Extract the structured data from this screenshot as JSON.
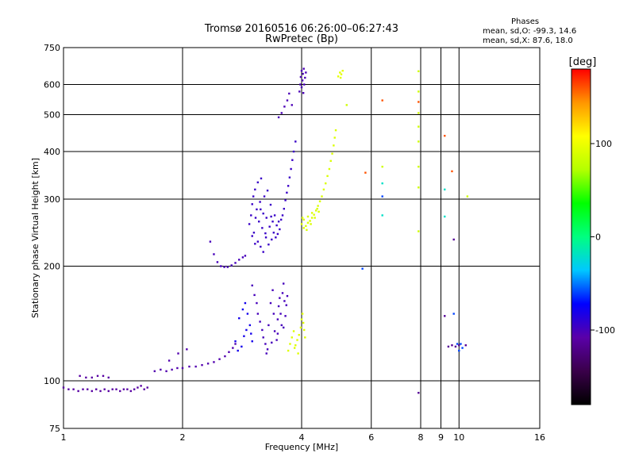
{
  "title": "Tromsø 20160516 06:26:00–06:27:43",
  "subtitle": "RwPretec (Bp)",
  "phase_stats": {
    "header": "Phases",
    "line_o": "mean, sd,O: -99.3, 14.6",
    "line_x": "mean, sd,X:  87.6, 18.0"
  },
  "colorbar": {
    "label": "[deg]",
    "ticks": [
      "100",
      "0",
      "-100"
    ],
    "tick_values": [
      100,
      0,
      -100
    ],
    "range": [
      -180,
      180
    ],
    "colors": [
      "#000000",
      "#3a004a",
      "#5a00a8",
      "#0000ff",
      "#00c8ff",
      "#00ff80",
      "#00ff00",
      "#b4ff00",
      "#ffff00",
      "#ff9600",
      "#ff0000"
    ]
  },
  "chart_data": {
    "type": "scatter",
    "xlabel": "Frequency [MHz]",
    "ylabel": "Stationary phase Virtual Height [km]",
    "xscale": "log",
    "yscale": "log",
    "xlim": [
      1,
      16
    ],
    "ylim": [
      75,
      750
    ],
    "xticks": [
      {
        "v": 1,
        "label": "1"
      },
      {
        "v": 2,
        "label": "2"
      },
      {
        "v": 4,
        "label": "4"
      },
      {
        "v": 6,
        "label": "6"
      },
      {
        "v": 8,
        "label": "8"
      },
      {
        "v": 9,
        "label": "9"
      },
      {
        "v": 10,
        "label": "10"
      },
      {
        "v": 16,
        "label": "16"
      }
    ],
    "yticks": [
      {
        "v": 75,
        "label": "75"
      },
      {
        "v": 100,
        "label": "100"
      },
      {
        "v": 200,
        "label": "200"
      },
      {
        "v": 300,
        "label": "300"
      },
      {
        "v": 400,
        "label": "400"
      },
      {
        "v": 500,
        "label": "500"
      },
      {
        "v": 600,
        "label": "600"
      },
      {
        "v": 750,
        "label": "750"
      }
    ],
    "grid": true,
    "series": [
      {
        "phase": -110,
        "points": [
          [
            1.0,
            96
          ],
          [
            1.03,
            95
          ],
          [
            1.06,
            95
          ],
          [
            1.09,
            94
          ],
          [
            1.12,
            95
          ],
          [
            1.15,
            95
          ],
          [
            1.18,
            94
          ],
          [
            1.21,
            95
          ],
          [
            1.24,
            94
          ],
          [
            1.27,
            95
          ],
          [
            1.3,
            94
          ],
          [
            1.33,
            95
          ],
          [
            1.36,
            95
          ],
          [
            1.39,
            94
          ],
          [
            1.42,
            95
          ],
          [
            1.45,
            95
          ],
          [
            1.48,
            94
          ],
          [
            1.51,
            95
          ],
          [
            1.54,
            96
          ],
          [
            1.57,
            97
          ],
          [
            1.6,
            95
          ],
          [
            1.63,
            96
          ],
          [
            1.1,
            103
          ],
          [
            1.14,
            102
          ],
          [
            1.18,
            102
          ],
          [
            1.22,
            103
          ],
          [
            1.26,
            103
          ],
          [
            1.3,
            102
          ]
        ]
      },
      {
        "phase": -105,
        "points": [
          [
            1.7,
            106
          ],
          [
            1.76,
            107
          ],
          [
            1.82,
            106
          ],
          [
            1.88,
            107
          ],
          [
            1.94,
            108
          ],
          [
            2.0,
            108
          ],
          [
            2.08,
            109
          ],
          [
            2.16,
            109
          ],
          [
            2.24,
            110
          ],
          [
            2.32,
            111
          ],
          [
            2.4,
            112
          ],
          [
            2.48,
            114
          ],
          [
            2.56,
            116
          ],
          [
            2.62,
            119
          ],
          [
            2.68,
            122
          ],
          [
            2.72,
            125
          ],
          [
            1.85,
            113
          ],
          [
            1.95,
            118
          ],
          [
            2.05,
            121
          ]
        ]
      },
      {
        "phase": -100,
        "points": [
          [
            2.35,
            232
          ],
          [
            2.4,
            215
          ],
          [
            2.45,
            205
          ],
          [
            2.5,
            200
          ],
          [
            2.55,
            199
          ],
          [
            2.6,
            199
          ],
          [
            2.66,
            201
          ],
          [
            2.72,
            204
          ],
          [
            2.78,
            208
          ],
          [
            2.84,
            211
          ],
          [
            2.88,
            213
          ]
        ]
      },
      {
        "phase": -95,
        "points": [
          [
            2.95,
            258
          ],
          [
            2.98,
            272
          ],
          [
            3.0,
            291
          ],
          [
            3.02,
            305
          ],
          [
            3.03,
            245
          ],
          [
            3.05,
            318
          ],
          [
            3.06,
            268
          ],
          [
            3.08,
            282
          ],
          [
            3.1,
            332
          ],
          [
            3.1,
            232
          ],
          [
            3.12,
            262
          ],
          [
            3.14,
            295
          ],
          [
            3.15,
            225
          ],
          [
            3.16,
            340
          ],
          [
            3.18,
            252
          ],
          [
            3.2,
            275
          ],
          [
            3.2,
            218
          ],
          [
            3.22,
            305
          ],
          [
            3.24,
            244
          ],
          [
            3.26,
            268
          ],
          [
            3.28,
            316
          ],
          [
            3.3,
            228
          ],
          [
            3.32,
            254
          ],
          [
            3.34,
            290
          ],
          [
            3.36,
            235
          ],
          [
            3.38,
            262
          ],
          [
            3.4,
            245
          ],
          [
            3.42,
            272
          ],
          [
            3.44,
            238
          ],
          [
            3.46,
            256
          ],
          [
            3.48,
            243
          ],
          [
            3.5,
            262
          ],
          [
            3.52,
            250
          ],
          [
            3.55,
            265
          ],
          [
            3.58,
            272
          ],
          [
            3.61,
            283
          ],
          [
            3.64,
            298
          ],
          [
            3.67,
            312
          ],
          [
            3.7,
            325
          ],
          [
            3.73,
            342
          ],
          [
            3.76,
            360
          ],
          [
            3.79,
            380
          ],
          [
            3.82,
            400
          ],
          [
            3.86,
            425
          ],
          [
            3.0,
            240
          ],
          [
            3.25,
            238
          ],
          [
            3.05,
            229
          ],
          [
            3.15,
            282
          ],
          [
            3.35,
            270
          ]
        ]
      },
      {
        "phase": -102,
        "points": [
          [
            3.5,
            492
          ],
          [
            3.56,
            505
          ],
          [
            3.62,
            525
          ],
          [
            3.68,
            545
          ],
          [
            3.72,
            568
          ],
          [
            3.78,
            530
          ],
          [
            3.95,
            575
          ],
          [
            3.97,
            600
          ],
          [
            3.98,
            628
          ],
          [
            4.0,
            652
          ],
          [
            4.0,
            590
          ],
          [
            4.02,
            615
          ],
          [
            4.03,
            640
          ],
          [
            4.04,
            570
          ],
          [
            4.05,
            660
          ],
          [
            4.06,
            600
          ],
          [
            4.08,
            625
          ],
          [
            4.1,
            645
          ]
        ]
      },
      {
        "phase": -80,
        "points": [
          [
            2.78,
            146
          ],
          [
            2.84,
            154
          ],
          [
            2.88,
            160
          ],
          [
            2.92,
            150
          ],
          [
            2.96,
            140
          ],
          [
            2.98,
            133
          ],
          [
            3.0,
            127
          ],
          [
            2.82,
            123
          ],
          [
            2.76,
            120
          ],
          [
            2.72,
            127
          ],
          [
            2.86,
            131
          ],
          [
            2.9,
            136
          ]
        ]
      },
      {
        "phase": -100,
        "points": [
          [
            3.0,
            178
          ],
          [
            3.04,
            168
          ],
          [
            3.08,
            160
          ],
          [
            3.1,
            150
          ],
          [
            3.14,
            143
          ],
          [
            3.18,
            136
          ],
          [
            3.2,
            130
          ],
          [
            3.24,
            125
          ],
          [
            3.28,
            121
          ],
          [
            3.3,
            140
          ],
          [
            3.34,
            160
          ],
          [
            3.38,
            173
          ],
          [
            3.4,
            150
          ],
          [
            3.42,
            135
          ],
          [
            3.46,
            128
          ],
          [
            3.48,
            145
          ],
          [
            3.5,
            157
          ],
          [
            3.52,
            165
          ],
          [
            3.54,
            150
          ],
          [
            3.56,
            140
          ],
          [
            3.58,
            170
          ],
          [
            3.6,
            180
          ],
          [
            3.62,
            162
          ],
          [
            3.64,
            148
          ],
          [
            3.48,
            133
          ],
          [
            3.36,
            126
          ],
          [
            3.26,
            118
          ],
          [
            3.6,
            138
          ],
          [
            3.66,
            158
          ],
          [
            3.68,
            167
          ]
        ]
      },
      {
        "phase": 90,
        "points": [
          [
            4.0,
            258
          ],
          [
            4.05,
            252
          ],
          [
            4.1,
            255
          ],
          [
            4.15,
            260
          ],
          [
            4.2,
            263
          ],
          [
            4.25,
            268
          ],
          [
            4.3,
            273
          ],
          [
            4.35,
            280
          ],
          [
            4.4,
            288
          ],
          [
            4.45,
            296
          ],
          [
            4.5,
            305
          ],
          [
            4.55,
            318
          ],
          [
            4.6,
            330
          ],
          [
            4.65,
            345
          ],
          [
            4.7,
            360
          ],
          [
            4.74,
            378
          ],
          [
            4.78,
            395
          ],
          [
            4.82,
            415
          ],
          [
            4.85,
            435
          ],
          [
            4.88,
            455
          ],
          [
            4.02,
            268
          ],
          [
            4.12,
            249
          ],
          [
            4.22,
            258
          ],
          [
            4.32,
            268
          ],
          [
            4.42,
            278
          ],
          [
            4.05,
            265
          ],
          [
            4.15,
            270
          ],
          [
            4.25,
            276
          ],
          [
            4.38,
            283
          ]
        ]
      },
      {
        "phase": 92,
        "points": [
          [
            3.7,
            120
          ],
          [
            3.74,
            125
          ],
          [
            3.78,
            130
          ],
          [
            3.82,
            135
          ],
          [
            3.86,
            124
          ],
          [
            3.9,
            128
          ],
          [
            3.94,
            132
          ],
          [
            3.98,
            138
          ],
          [
            4.0,
            145
          ],
          [
            4.02,
            150
          ],
          [
            4.04,
            142
          ],
          [
            4.06,
            136
          ],
          [
            4.08,
            130
          ],
          [
            3.92,
            118
          ],
          [
            3.84,
            122
          ]
        ]
      },
      {
        "phase": 95,
        "points": [
          [
            4.95,
            630
          ],
          [
            5.0,
            645
          ],
          [
            5.04,
            638
          ],
          [
            5.08,
            652
          ],
          [
            5.02,
            625
          ]
        ]
      },
      {
        "phase": 85,
        "points": [
          [
            5.2,
            530
          ],
          [
            7.9,
            650
          ],
          [
            7.9,
            575
          ],
          [
            7.9,
            505
          ],
          [
            7.9,
            465
          ],
          [
            7.9,
            425
          ],
          [
            7.9,
            365
          ],
          [
            7.9,
            322
          ],
          [
            6.4,
            365
          ],
          [
            7.9,
            247
          ],
          [
            10.5,
            305
          ]
        ]
      },
      {
        "phase": 160,
        "points": [
          [
            5.8,
            352
          ],
          [
            6.4,
            545
          ],
          [
            7.9,
            540
          ],
          [
            9.2,
            440
          ],
          [
            9.6,
            355
          ]
        ]
      },
      {
        "phase": -20,
        "points": [
          [
            6.4,
            330
          ],
          [
            6.4,
            272
          ],
          [
            9.2,
            318
          ],
          [
            9.2,
            270
          ]
        ]
      },
      {
        "phase": -60,
        "points": [
          [
            6.4,
            305
          ],
          [
            5.7,
            197
          ],
          [
            9.7,
            150
          ],
          [
            9.9,
            125
          ],
          [
            10.0,
            120
          ],
          [
            10.1,
            125
          ],
          [
            10.2,
            122
          ]
        ]
      },
      {
        "phase": -115,
        "points": [
          [
            7.9,
            93
          ],
          [
            9.7,
            235
          ],
          [
            9.4,
            123
          ],
          [
            9.6,
            124
          ],
          [
            9.8,
            123
          ],
          [
            10.0,
            124
          ],
          [
            10.4,
            124
          ],
          [
            9.2,
            148
          ]
        ]
      }
    ]
  }
}
